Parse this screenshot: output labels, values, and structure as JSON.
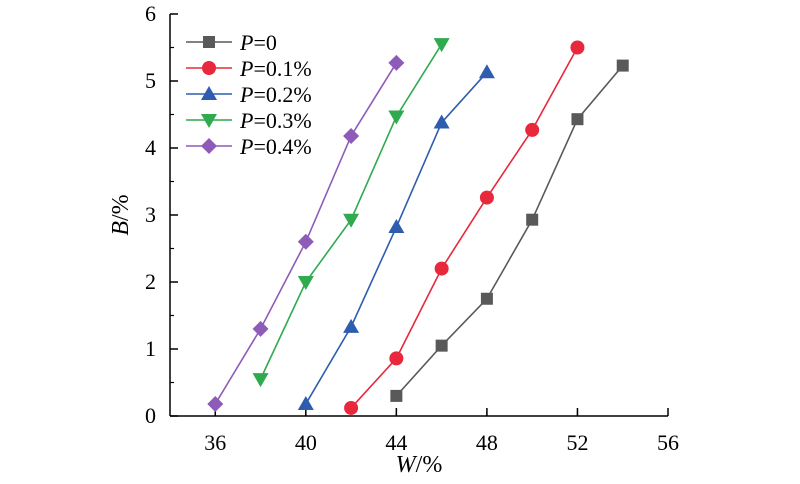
{
  "chart_data": {
    "type": "line",
    "xlabel": {
      "var": "W",
      "unit": "/%"
    },
    "ylabel": {
      "var": "B",
      "unit": "/%"
    },
    "xlim": [
      34,
      56
    ],
    "ylim": [
      0,
      6
    ],
    "xticks": [
      36,
      40,
      44,
      48,
      52,
      56
    ],
    "yticks": [
      0,
      1,
      2,
      3,
      4,
      5,
      6
    ],
    "legend_position": "top-left",
    "series": [
      {
        "name_var": "P",
        "name_suffix": "=0",
        "color": "#595959",
        "marker": "square",
        "x": [
          44,
          46,
          48,
          50,
          52,
          54
        ],
        "y": [
          0.3,
          1.05,
          1.75,
          2.93,
          4.43,
          5.23
        ]
      },
      {
        "name_var": "P",
        "name_suffix": "=0.1%",
        "color": "#e8283c",
        "marker": "circle",
        "x": [
          42,
          44,
          46,
          48,
          50,
          52
        ],
        "y": [
          0.12,
          0.86,
          2.2,
          3.26,
          4.27,
          5.5
        ]
      },
      {
        "name_var": "P",
        "name_suffix": "=0.2%",
        "color": "#2e5db0",
        "marker": "triangle-up",
        "x": [
          40,
          42,
          44,
          46,
          48
        ],
        "y": [
          0.18,
          1.33,
          2.82,
          4.38,
          5.13
        ]
      },
      {
        "name_var": "P",
        "name_suffix": "=0.3%",
        "color": "#2faa4e",
        "marker": "triangle-down",
        "x": [
          38,
          40,
          42,
          44,
          46
        ],
        "y": [
          0.55,
          2.0,
          2.93,
          4.47,
          5.55
        ]
      },
      {
        "name_var": "P",
        "name_suffix": "=0.4%",
        "color": "#8e5cb8",
        "marker": "diamond",
        "x": [
          36,
          38,
          40,
          42,
          44
        ],
        "y": [
          0.18,
          1.3,
          2.6,
          4.18,
          5.27
        ]
      }
    ]
  }
}
